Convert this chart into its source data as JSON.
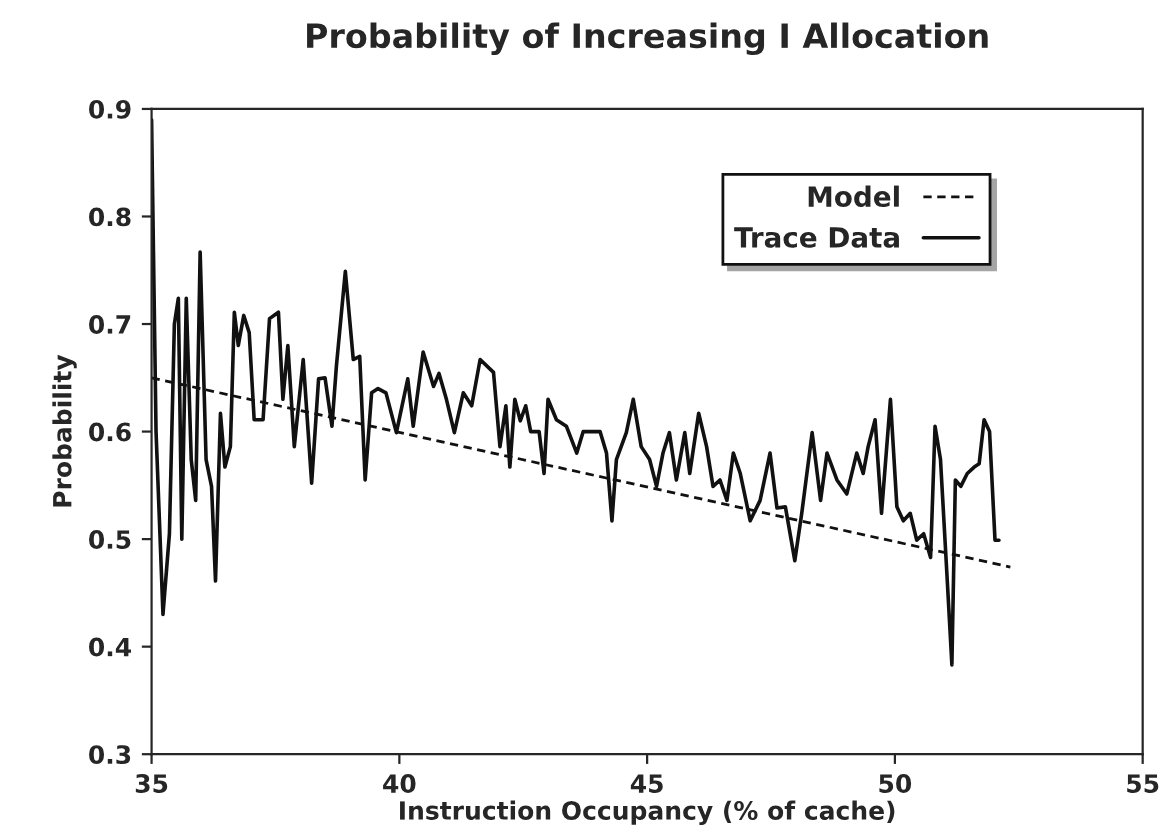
{
  "chart_data": {
    "type": "line",
    "title": "Probability of Increasing I Allocation",
    "xlabel": "Instruction Occupancy (% of cache)",
    "ylabel": "Probability",
    "xlim": [
      35,
      55
    ],
    "xticks": [
      35,
      40,
      45,
      50,
      55
    ],
    "ylim": [
      0.3,
      0.9
    ],
    "yticks": [
      0.3,
      0.4,
      0.5,
      0.6,
      0.7,
      0.8,
      0.9
    ],
    "grid": false,
    "legend": "top right",
    "series": [
      {
        "name": "Model",
        "color": "#111111",
        "line_style": "dashed",
        "x": [
          35,
          52.33
        ],
        "values": [
          0.65,
          0.474
        ]
      },
      {
        "name": "Trace Data",
        "color": "#111111",
        "line_style": "solid",
        "x": [
          35,
          35.09,
          35.23,
          35.36,
          35.46,
          35.54,
          35.61,
          35.7,
          35.8,
          35.89,
          35.98,
          36.1,
          36.21,
          36.29,
          36.39,
          36.48,
          36.59,
          36.67,
          36.75,
          36.86,
          36.97,
          37.07,
          37.25,
          37.38,
          37.56,
          37.65,
          37.75,
          37.88,
          38.06,
          38.23,
          38.37,
          38.5,
          38.64,
          38.73,
          38.91,
          39.07,
          39.2,
          39.31,
          39.44,
          39.57,
          39.73,
          39.94,
          40.17,
          40.28,
          40.48,
          40.69,
          40.8,
          40.95,
          41.11,
          41.29,
          41.46,
          41.63,
          41.9,
          42.03,
          42.15,
          42.23,
          42.33,
          42.44,
          42.55,
          42.65,
          42.82,
          42.92,
          43.0,
          43.17,
          43.37,
          43.58,
          43.71,
          44.05,
          44.18,
          44.29,
          44.38,
          44.58,
          44.72,
          44.88,
          45.05,
          45.19,
          45.32,
          45.45,
          45.59,
          45.76,
          45.86,
          46.04,
          46.2,
          46.33,
          46.47,
          46.61,
          46.74,
          46.88,
          47.08,
          47.28,
          47.48,
          47.62,
          47.79,
          47.98,
          48.12,
          48.33,
          48.5,
          48.63,
          48.83,
          49.03,
          49.23,
          49.36,
          49.46,
          49.6,
          49.73,
          49.91,
          50.04,
          50.17,
          50.31,
          50.44,
          50.58,
          50.72,
          50.81,
          50.92,
          51.05,
          51.15,
          51.22,
          51.33,
          51.46,
          51.6,
          51.7,
          51.8,
          51.91,
          52.02,
          52.1
        ],
        "values": [
          0.89,
          0.6,
          0.43,
          0.505,
          0.7,
          0.724,
          0.5,
          0.724,
          0.574,
          0.536,
          0.767,
          0.574,
          0.549,
          0.461,
          0.617,
          0.567,
          0.586,
          0.711,
          0.68,
          0.708,
          0.692,
          0.611,
          0.611,
          0.705,
          0.711,
          0.63,
          0.68,
          0.586,
          0.667,
          0.552,
          0.649,
          0.65,
          0.605,
          0.661,
          0.749,
          0.667,
          0.67,
          0.555,
          0.636,
          0.64,
          0.636,
          0.599,
          0.649,
          0.605,
          0.674,
          0.642,
          0.654,
          0.63,
          0.599,
          0.636,
          0.624,
          0.667,
          0.655,
          0.586,
          0.624,
          0.567,
          0.63,
          0.61,
          0.624,
          0.6,
          0.6,
          0.561,
          0.63,
          0.611,
          0.605,
          0.58,
          0.6,
          0.6,
          0.58,
          0.517,
          0.574,
          0.599,
          0.63,
          0.586,
          0.574,
          0.549,
          0.58,
          0.599,
          0.555,
          0.599,
          0.561,
          0.617,
          0.586,
          0.549,
          0.555,
          0.536,
          0.58,
          0.561,
          0.517,
          0.536,
          0.58,
          0.529,
          0.53,
          0.48,
          0.524,
          0.599,
          0.536,
          0.58,
          0.555,
          0.542,
          0.58,
          0.561,
          0.586,
          0.611,
          0.524,
          0.63,
          0.53,
          0.517,
          0.524,
          0.499,
          0.505,
          0.483,
          0.605,
          0.574,
          0.467,
          0.383,
          0.555,
          0.549,
          0.561,
          0.567,
          0.57,
          0.611,
          0.6,
          0.499,
          0.499
        ]
      }
    ]
  }
}
